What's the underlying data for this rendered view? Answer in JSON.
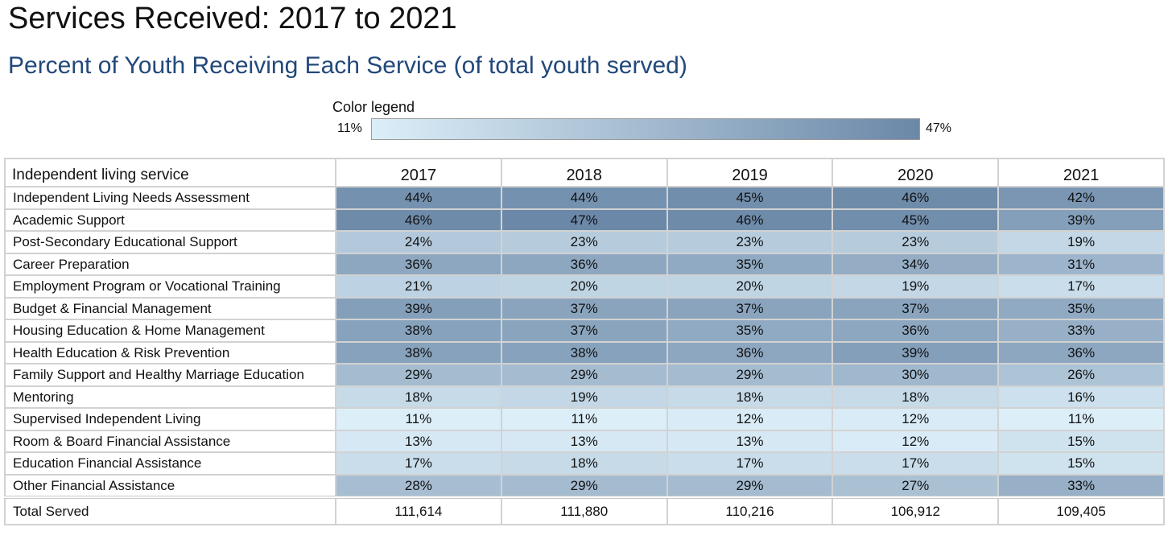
{
  "title": "Services Received: 2017 to 2021",
  "subtitle": "Percent of Youth Receiving Each Service (of total youth served)",
  "legend": {
    "title": "Color legend",
    "min_label": "11%",
    "max_label": "47%",
    "min_color": "#dceef8",
    "max_color": "#6b88a8"
  },
  "chart_data": {
    "type": "heatmap",
    "title": "Services Received: 2017 to 2021",
    "subtitle": "Percent of Youth Receiving Each Service (of total youth served)",
    "row_header": "Independent living service",
    "columns": [
      "2017",
      "2018",
      "2019",
      "2020",
      "2021"
    ],
    "value_range": [
      11,
      47
    ],
    "rows": [
      {
        "label": "Independent Living Needs Assessment",
        "values": [
          44,
          44,
          45,
          46,
          42
        ]
      },
      {
        "label": "Academic Support",
        "values": [
          46,
          47,
          46,
          45,
          39
        ]
      },
      {
        "label": "Post-Secondary Educational Support",
        "values": [
          24,
          23,
          23,
          23,
          19
        ]
      },
      {
        "label": "Career Preparation",
        "values": [
          36,
          36,
          35,
          34,
          31
        ]
      },
      {
        "label": "Employment Program or Vocational Training",
        "values": [
          21,
          20,
          20,
          19,
          17
        ]
      },
      {
        "label": "Budget & Financial Management",
        "values": [
          39,
          37,
          37,
          37,
          35
        ]
      },
      {
        "label": "Housing Education & Home Management",
        "values": [
          38,
          37,
          35,
          36,
          33
        ]
      },
      {
        "label": "Health Education & Risk Prevention",
        "values": [
          38,
          38,
          36,
          39,
          36
        ]
      },
      {
        "label": "Family Support and Healthy Marriage Education",
        "values": [
          29,
          29,
          29,
          30,
          26
        ]
      },
      {
        "label": "Mentoring",
        "values": [
          18,
          19,
          18,
          18,
          16
        ]
      },
      {
        "label": "Supervised Independent Living",
        "values": [
          11,
          11,
          12,
          12,
          11
        ]
      },
      {
        "label": "Room & Board Financial Assistance",
        "values": [
          13,
          13,
          13,
          12,
          15
        ]
      },
      {
        "label": "Education Financial Assistance",
        "values": [
          17,
          18,
          17,
          17,
          15
        ]
      },
      {
        "label": "Other Financial Assistance",
        "values": [
          28,
          29,
          29,
          27,
          33
        ]
      }
    ],
    "total_row": {
      "label": "Total Served",
      "values": [
        "111,614",
        "111,880",
        "110,216",
        "106,912",
        "109,405"
      ]
    }
  }
}
